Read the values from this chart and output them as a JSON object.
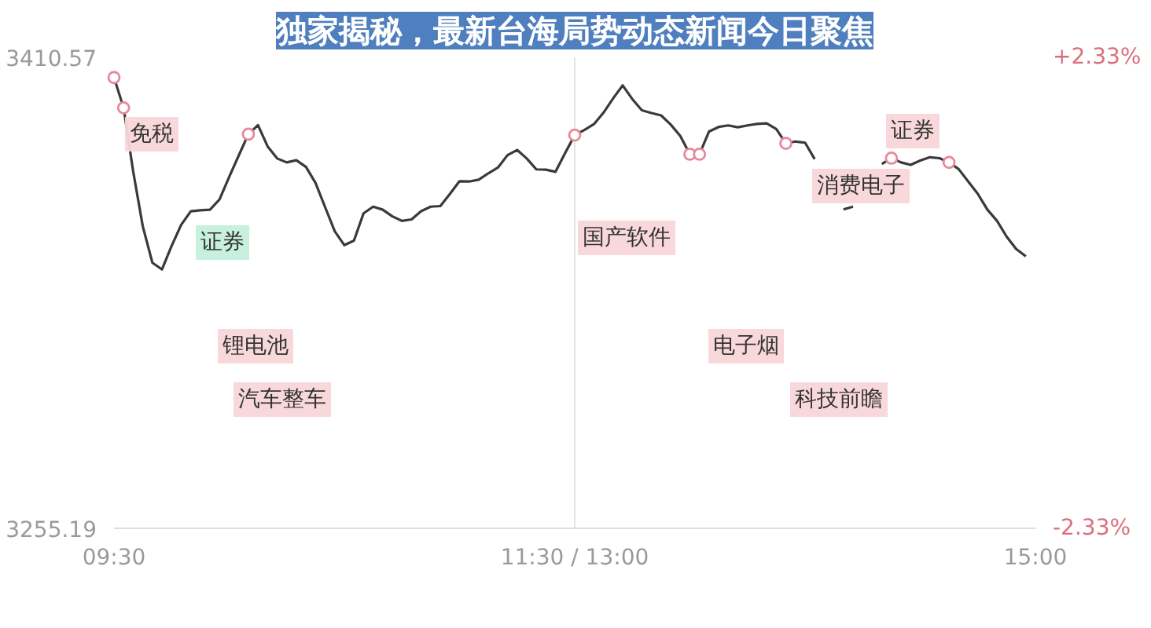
{
  "chart_data": {
    "type": "line",
    "title": "独家揭秘，最新台海局势动态新闻今日聚焦",
    "categories": [
      "09:30",
      null,
      null,
      null,
      null,
      null,
      null,
      null,
      null,
      null,
      null,
      null,
      null,
      null,
      null,
      null,
      null,
      null,
      null,
      null,
      null,
      null,
      null,
      null,
      null,
      null,
      null,
      null,
      null,
      null,
      null,
      null,
      null,
      null,
      null,
      null,
      null,
      null,
      null,
      null,
      null,
      null,
      null,
      null,
      null,
      null,
      null,
      null,
      "11:30 / 13:00",
      null,
      null,
      null,
      null,
      null,
      null,
      null,
      null,
      null,
      null,
      null,
      null,
      null,
      null,
      null,
      null,
      null,
      null,
      null,
      null,
      null,
      null,
      null,
      null,
      null,
      null,
      null,
      null,
      null,
      null,
      null,
      null,
      null,
      null,
      null,
      null,
      null,
      null,
      null,
      null,
      null,
      null,
      null,
      null,
      null,
      null,
      null,
      "15:00"
    ],
    "ylim": [
      3255.19,
      3410.57
    ],
    "yticks": [
      3255.19,
      3410.57
    ],
    "y2lim": [
      -2.33,
      2.33
    ],
    "y2ticks": [
      {
        "value": -2.33,
        "label": "-2.33%"
      },
      {
        "value": 2.33,
        "label": "+2.33%"
      }
    ],
    "grid": true,
    "line_style": "solid",
    "series": [
      {
        "color": "#3a3a3a",
        "marker": "none",
        "values": [
          3403.9,
          3393.9,
          3372.9,
          3354.8,
          3342.8,
          3340.6,
          3348.3,
          3355.3,
          3359.8,
          3360.1,
          3360.3,
          3363.7,
          3371.1,
          3378.2,
          3385.2,
          3388.2,
          3381.2,
          3377.2,
          3375.9,
          3376.6,
          3374.4,
          3369.1,
          3361.1,
          3353.2,
          3348.6,
          3350.1,
          3359.1,
          3361.3,
          3360.3,
          3358.1,
          3356.6,
          3357.1,
          3359.8,
          3361.3,
          3361.5,
          3365.5,
          3369.7,
          3369.6,
          3370.2,
          3372.3,
          3374.2,
          3378.3,
          3380.0,
          3377.2,
          3373.6,
          3373.5,
          3372.8,
          3379.0,
          3384.9,
          3386.6,
          3388.5,
          3392.3,
          3397.0,
          3401.3,
          3396.8,
          3393.1,
          3392.2,
          3391.4,
          3388.4,
          3384.6,
          3378.6,
          3378.6,
          3386.1,
          3387.6,
          3388.1,
          3387.5,
          3388.1,
          3388.6,
          3388.8,
          3386.9,
          3382.2,
          3382.8,
          3382.4,
          3377.0,
          null,
          null,
          3360.4,
          3361.3,
          null,
          null,
          3375.4,
          3377.3,
          3375.9,
          3375.1,
          3376.5,
          3377.6,
          3377.3,
          3375.9,
          3373.7,
          3369.6,
          3365.5,
          3360.3,
          3356.6,
          3351.4,
          3347.3,
          3344.9,
          null
        ]
      },
      {
        "type": "scatter",
        "color": "#e58a9b",
        "marker": "circle",
        "values": [
          3403.9,
          3393.9,
          null,
          null,
          null,
          null,
          null,
          null,
          null,
          null,
          null,
          null,
          null,
          null,
          3385.2,
          null,
          null,
          null,
          null,
          null,
          null,
          null,
          null,
          null,
          null,
          null,
          null,
          null,
          null,
          null,
          null,
          null,
          null,
          null,
          null,
          null,
          null,
          null,
          null,
          null,
          null,
          null,
          null,
          null,
          null,
          null,
          null,
          null,
          3384.9,
          null,
          null,
          null,
          null,
          null,
          null,
          null,
          null,
          null,
          null,
          null,
          3378.6,
          3378.6,
          null,
          null,
          null,
          null,
          null,
          null,
          null,
          null,
          3382.2,
          null,
          null,
          null,
          null,
          null,
          null,
          null,
          null,
          null,
          null,
          3377.3,
          null,
          null,
          null,
          null,
          null,
          3375.9,
          null,
          null,
          null,
          null,
          null,
          null,
          null,
          null,
          null
        ]
      }
    ],
    "annotations": [
      "免税",
      "证券",
      "国产软件",
      "锂电池",
      "汽车整车",
      "电子烟",
      "科技前瞻",
      "消费电子",
      "证券"
    ]
  }
}
